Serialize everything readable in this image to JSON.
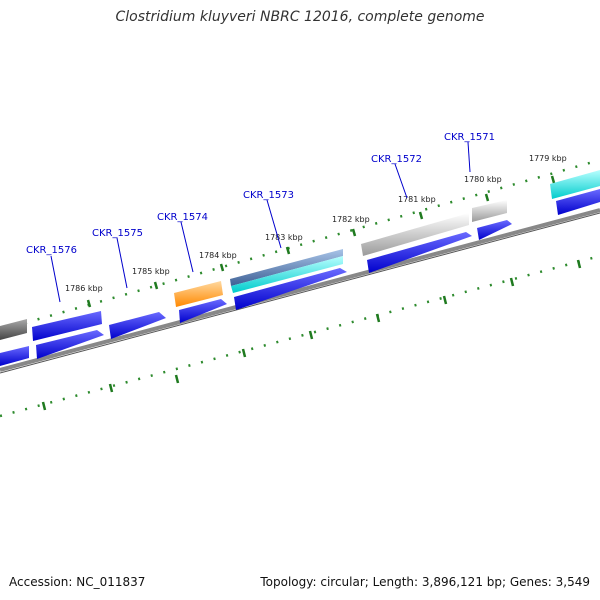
{
  "header": {
    "title": "Clostridium kluyveri NBRC 12016, complete genome"
  },
  "footer": {
    "accession": "Accession: NC_011837",
    "stats": "Topology: circular; Length: 3,896,121 bp; Genes: 3,549"
  },
  "kbp_labels": [
    "1786 kbp",
    "1785 kbp",
    "1784 kbp",
    "1783 kbp",
    "1782 kbp",
    "1781 kbp",
    "1780 kbp",
    "1779 kbp"
  ],
  "gene_labels": [
    "CKR_1576",
    "CKR_1575",
    "CKR_1574",
    "CKR_1573",
    "CKR_1572",
    "CKR_1571"
  ],
  "colors": {
    "cds": "#0000ee",
    "gene_outer": "#9a9a9a",
    "gene_gray_dark": "#555555",
    "gene_orange": "#ff8800",
    "gene_steel": "#4a6fa5",
    "gene_cyan": "#00e5e5",
    "tick": "#228b22",
    "backbone": "#888888",
    "label": "#0000cc"
  }
}
